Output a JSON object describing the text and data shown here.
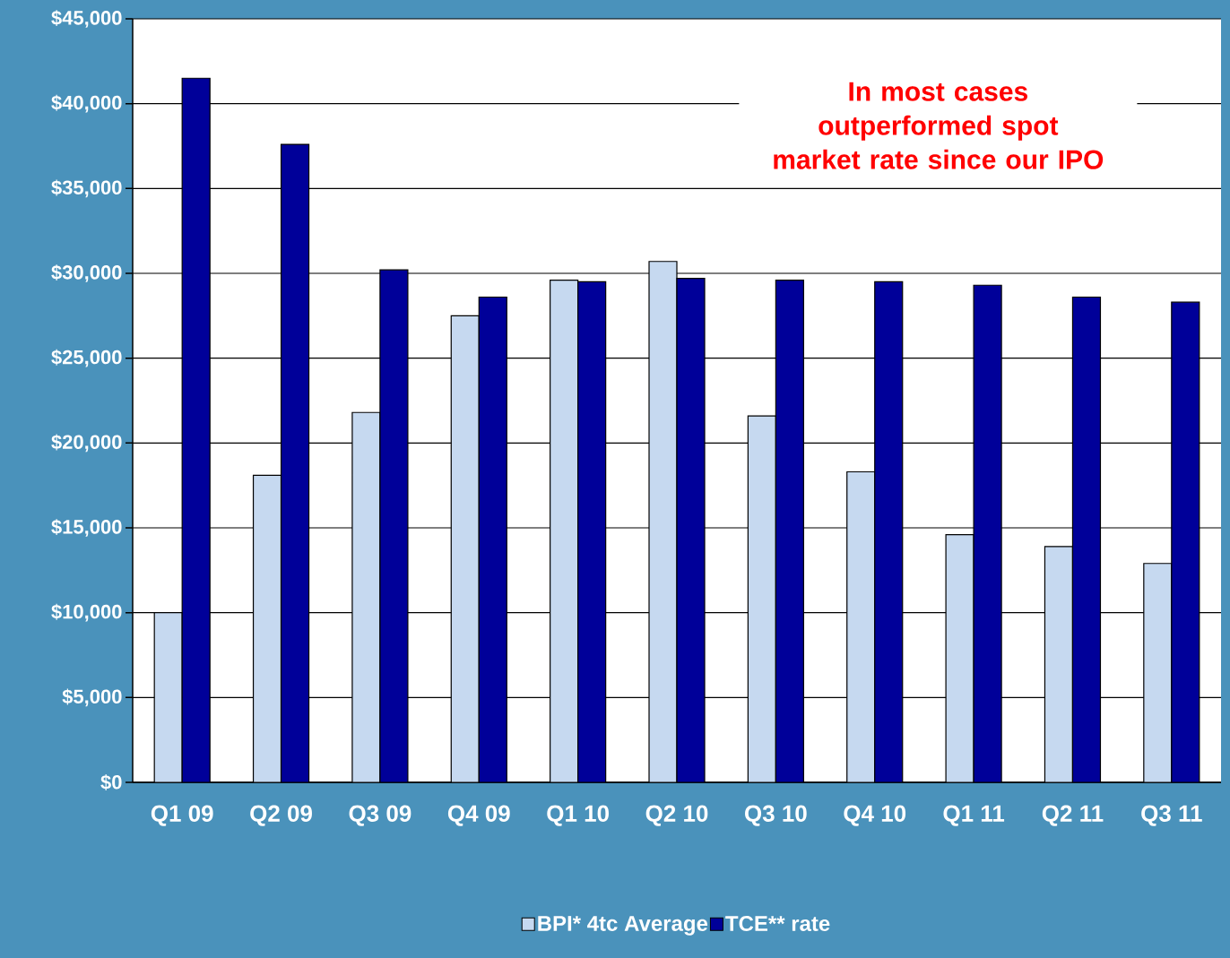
{
  "chart_data": {
    "type": "bar",
    "categories": [
      "Q1 09",
      "Q2 09",
      "Q3 09",
      "Q4 09",
      "Q1 10",
      "Q2 10",
      "Q3 10",
      "Q4 10",
      "Q1 11",
      "Q2 11",
      "Q3 11"
    ],
    "series": [
      {
        "name": "BPI* 4tc Average",
        "color": "#c6d9f0",
        "values": [
          10000,
          18100,
          21800,
          27500,
          29600,
          30700,
          21600,
          18300,
          14600,
          13900,
          12900
        ]
      },
      {
        "name": "TCE** rate",
        "color": "#000099",
        "values": [
          41500,
          37600,
          30200,
          28600,
          29500,
          29700,
          29600,
          29500,
          29300,
          28600,
          28300
        ]
      }
    ],
    "ylim": [
      0,
      45000
    ],
    "yticks": [
      {
        "value": 0,
        "label": "$0"
      },
      {
        "value": 5000,
        "label": "$5,000"
      },
      {
        "value": 10000,
        "label": "$10,000"
      },
      {
        "value": 15000,
        "label": "$15,000"
      },
      {
        "value": 20000,
        "label": "$20,000"
      },
      {
        "value": 25000,
        "label": "$25,000"
      },
      {
        "value": 30000,
        "label": "$30,000"
      },
      {
        "value": 35000,
        "label": "$35,000"
      },
      {
        "value": 40000,
        "label": "$40,000"
      },
      {
        "value": 45000,
        "label": "$45,000"
      }
    ],
    "grid": "y",
    "legend": "bottom",
    "annotations": [
      "In most cases outperformed spot market rate since our IPO"
    ]
  }
}
